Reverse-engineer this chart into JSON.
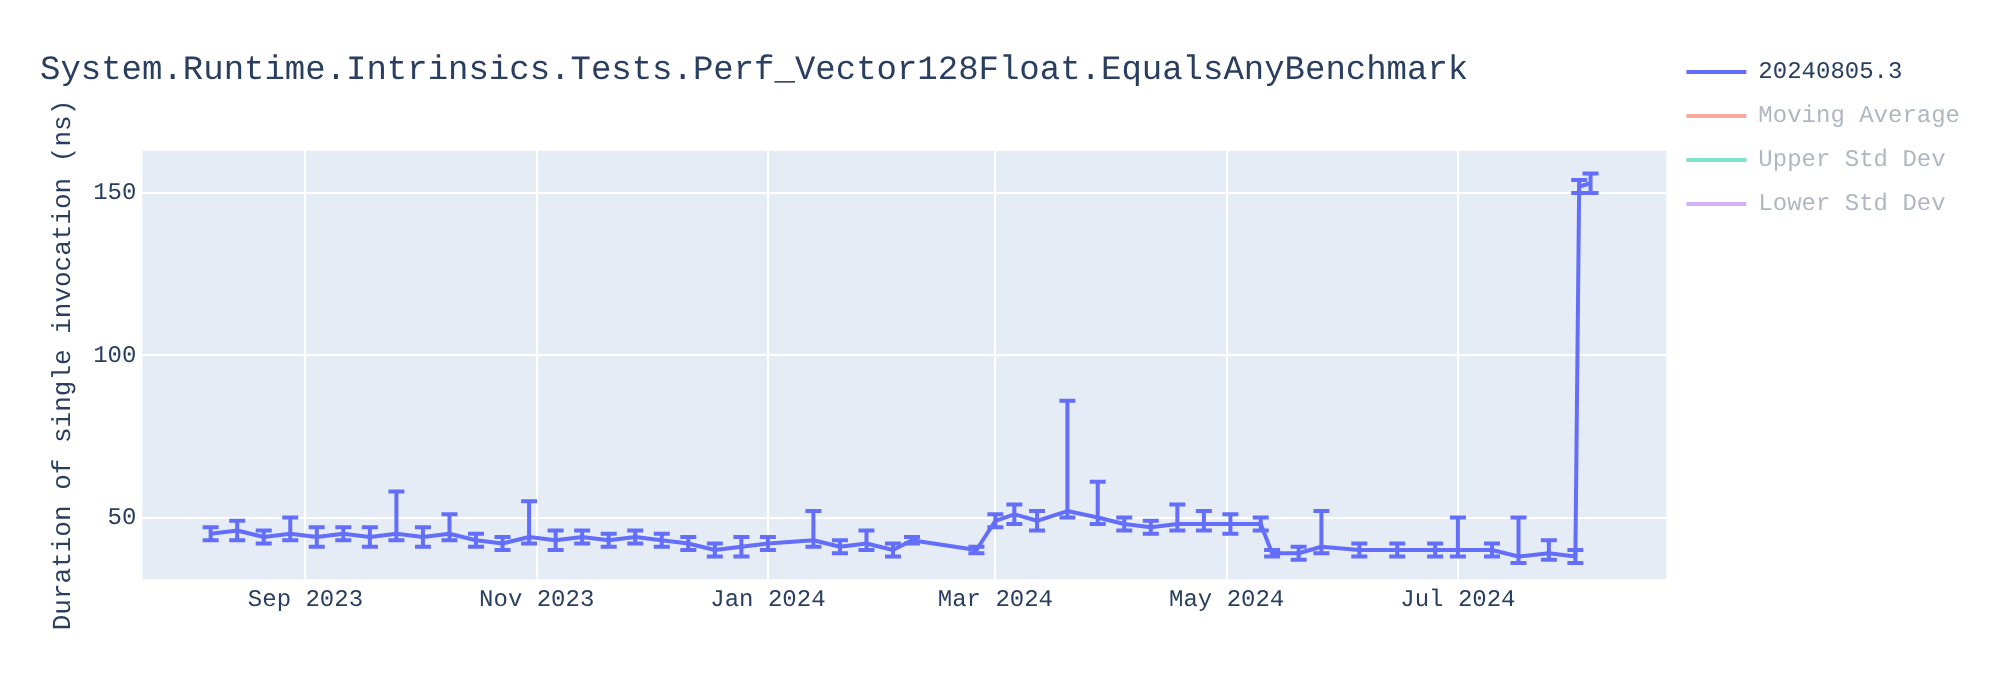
{
  "chart_data": {
    "type": "line",
    "title": "System.Runtime.Intrinsics.Tests.Perf_Vector128Float.EqualsAnyBenchmark",
    "ylabel": "Duration of single invocation (ns)",
    "x": [
      "2023-08-07",
      "2023-08-14",
      "2023-08-21",
      "2023-08-28",
      "2023-09-04",
      "2023-09-11",
      "2023-09-18",
      "2023-09-25",
      "2023-10-02",
      "2023-10-09",
      "2023-10-16",
      "2023-10-23",
      "2023-10-30",
      "2023-11-06",
      "2023-11-13",
      "2023-11-20",
      "2023-11-27",
      "2023-12-04",
      "2023-12-11",
      "2023-12-18",
      "2023-12-25",
      "2024-01-01",
      "2024-01-13",
      "2024-01-20",
      "2024-01-27",
      "2024-02-03",
      "2024-02-08",
      "2024-02-25",
      "2024-03-01",
      "2024-03-06",
      "2024-03-12",
      "2024-03-20",
      "2024-03-28",
      "2024-04-04",
      "2024-04-11",
      "2024-04-18",
      "2024-04-25",
      "2024-05-02",
      "2024-05-10",
      "2024-05-13",
      "2024-05-20",
      "2024-05-26",
      "2024-06-05",
      "2024-06-15",
      "2024-06-25",
      "2024-07-01",
      "2024-07-10",
      "2024-07-17",
      "2024-07-25",
      "2024-08-01",
      "2024-08-02",
      "2024-08-05"
    ],
    "series": [
      {
        "name": "20240805.3",
        "color": "#636efa",
        "values": [
          45,
          46,
          44,
          45,
          44,
          45,
          44,
          45,
          44,
          45,
          43,
          42,
          44,
          43,
          44,
          43,
          44,
          43,
          42,
          40,
          41,
          42,
          43,
          41,
          42,
          40,
          43,
          40,
          49,
          51,
          49,
          52,
          50,
          48,
          47,
          48,
          48,
          48,
          48,
          39,
          39,
          41,
          40,
          40,
          40,
          40,
          40,
          38,
          39,
          38,
          152,
          153
        ],
        "errors": [
          2,
          3,
          2,
          [
            43,
            50
          ],
          3,
          2,
          3,
          [
            43,
            58
          ],
          3,
          [
            43,
            51
          ],
          2,
          2,
          [
            42,
            55
          ],
          3,
          2,
          2,
          2,
          2,
          2,
          2,
          3,
          2,
          [
            41,
            52
          ],
          2,
          [
            40,
            46
          ],
          2,
          1,
          1,
          2,
          3,
          3,
          [
            50,
            86
          ],
          [
            48,
            61
          ],
          2,
          2,
          [
            46,
            54
          ],
          [
            46,
            52
          ],
          3,
          2,
          1,
          2,
          [
            39,
            52
          ],
          2,
          2,
          2,
          [
            38,
            50
          ],
          2,
          [
            36,
            50
          ],
          [
            37,
            43
          ],
          2,
          2,
          3
        ]
      },
      {
        "name": "Moving Average",
        "color": "#ef553b",
        "values": [
          null,
          null,
          null,
          null,
          null,
          null,
          null,
          null,
          null,
          null,
          null,
          null,
          null,
          null,
          null,
          null,
          null,
          null,
          null,
          null,
          null,
          null,
          null,
          null,
          null,
          null,
          null,
          null,
          null,
          null,
          null,
          null,
          null,
          null,
          null,
          null,
          null,
          null,
          null,
          null,
          null,
          null,
          null,
          null,
          null,
          null,
          null,
          null,
          null,
          null,
          null,
          null
        ]
      },
      {
        "name": "Upper Std Dev",
        "color": "#00cc96",
        "values": [
          null,
          null,
          null,
          null,
          null,
          null,
          null,
          null,
          null,
          null,
          null,
          null,
          null,
          null,
          null,
          null,
          null,
          null,
          null,
          null,
          null,
          null,
          null,
          null,
          null,
          null,
          null,
          null,
          null,
          null,
          null,
          null,
          null,
          null,
          null,
          null,
          null,
          null,
          null,
          null,
          null,
          null,
          null,
          null,
          null,
          null,
          null,
          null,
          null,
          null,
          null,
          null
        ]
      },
      {
        "name": "Lower Std Dev",
        "color": "#ab63fa",
        "values": [
          null,
          null,
          null,
          null,
          null,
          null,
          null,
          null,
          null,
          null,
          null,
          null,
          null,
          null,
          null,
          null,
          null,
          null,
          null,
          null,
          null,
          null,
          null,
          null,
          null,
          null,
          null,
          null,
          null,
          null,
          null,
          null,
          null,
          null,
          null,
          null,
          null,
          null,
          null,
          null,
          null,
          null,
          null,
          null,
          null,
          null,
          null,
          null,
          null,
          null,
          null,
          null
        ]
      }
    ],
    "xlim": [
      "2023-07-20",
      "2024-08-25"
    ],
    "xticks": [
      {
        "value": "2023-09-01",
        "label": "Sep 2023"
      },
      {
        "value": "2023-11-01",
        "label": "Nov 2023"
      },
      {
        "value": "2024-01-01",
        "label": "Jan 2024"
      },
      {
        "value": "2024-03-01",
        "label": "Mar 2024"
      },
      {
        "value": "2024-05-01",
        "label": "May 2024"
      },
      {
        "value": "2024-07-01",
        "label": "Jul 2024"
      }
    ],
    "ylim": [
      31,
      163
    ],
    "yticks": [
      50,
      100,
      150
    ],
    "grid": true,
    "legend": "top right"
  }
}
